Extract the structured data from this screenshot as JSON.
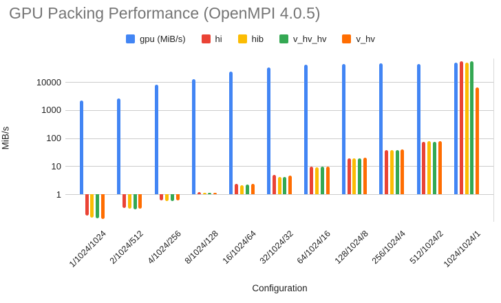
{
  "title": "GPU Packing Performance (OpenMPI 4.0.5)",
  "colors": {
    "title_text": "#757575",
    "axis_text": "#212121",
    "gridline": "#cccccc",
    "background": "#ffffff"
  },
  "chart_data": {
    "type": "bar",
    "title": "GPU Packing Performance (OpenMPI 4.0.5)",
    "xlabel": "Configuration",
    "ylabel": "MiB/s",
    "yscale": "log",
    "baseline": 1,
    "ylim": [
      0.1,
      100000
    ],
    "yticks": [
      1,
      10,
      100,
      1000,
      10000
    ],
    "ytick_labels": [
      "1",
      "10",
      "100",
      "1000",
      "10000"
    ],
    "grid": true,
    "legend_position": "top",
    "categories": [
      "1/1024/1024",
      "2/1024/512",
      "4/1024/256",
      "8/1024/128",
      "16/1024/64",
      "32/1024/32",
      "64/1024/16",
      "128/1024/8",
      "256/1024/4",
      "512/1024/2",
      "1024/1024/1"
    ],
    "series": [
      {
        "name": "gpu (MiB/s)",
        "color": "#4285F4",
        "values": [
          2200,
          2600,
          8000,
          12500,
          23000,
          33000,
          42000,
          43000,
          46000,
          43000,
          50000
        ]
      },
      {
        "name": "hi",
        "color": "#EA4335",
        "values": [
          0.17,
          0.32,
          0.61,
          1.2,
          2.3,
          4.8,
          9.6,
          19,
          38,
          75,
          56000
        ]
      },
      {
        "name": "hib",
        "color": "#FBBC04",
        "values": [
          0.15,
          0.3,
          0.58,
          1.15,
          2.1,
          4.0,
          9.3,
          19,
          38,
          80,
          50000
        ]
      },
      {
        "name": "v_hv_hv",
        "color": "#34A853",
        "values": [
          0.14,
          0.29,
          0.58,
          1.1,
          2.2,
          4.1,
          9.4,
          19,
          38,
          73,
          56000
        ]
      },
      {
        "name": "v_hv",
        "color": "#FF6D01",
        "values": [
          0.13,
          0.3,
          0.61,
          1.15,
          2.3,
          4.7,
          9.5,
          20,
          40,
          80,
          6600
        ]
      }
    ]
  }
}
